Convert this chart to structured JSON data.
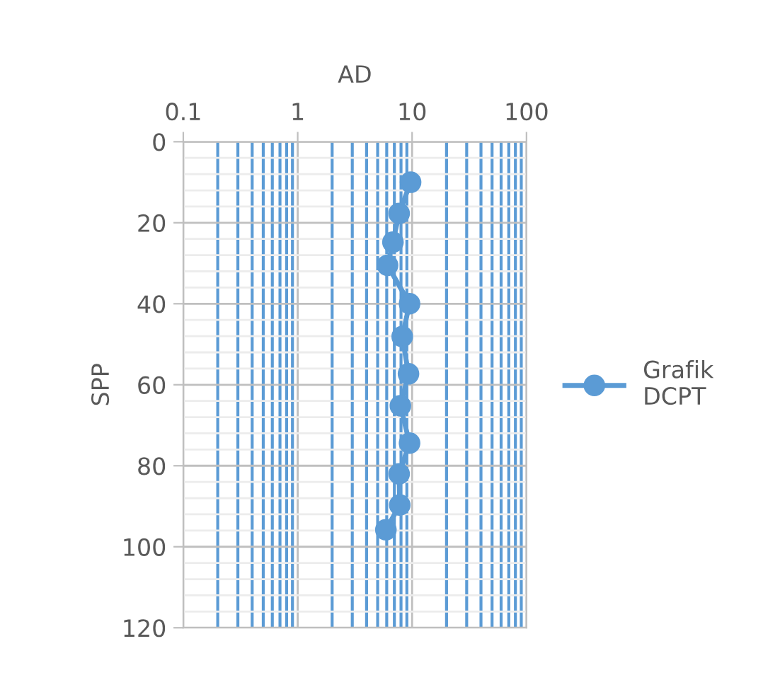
{
  "chart_data": {
    "type": "line",
    "xlabel": "AD",
    "ylabel": "SPP",
    "log": "x",
    "xlim": [
      0.1,
      100
    ],
    "xticks": [
      0.1,
      {
        "value": 0.2,
        "label": null
      },
      {
        "value": 0.3,
        "label": null
      },
      {
        "value": 0.4,
        "label": null
      },
      {
        "value": 0.5,
        "label": null
      },
      {
        "value": 0.6,
        "label": null
      },
      {
        "value": 0.7,
        "label": null
      },
      {
        "value": 0.8,
        "label": null
      },
      {
        "value": 0.9,
        "label": null
      },
      1,
      {
        "value": 2,
        "label": null
      },
      {
        "value": 3,
        "label": null
      },
      {
        "value": 4,
        "label": null
      },
      {
        "value": 5,
        "label": null
      },
      {
        "value": 6,
        "label": null
      },
      {
        "value": 7,
        "label": null
      },
      {
        "value": 8,
        "label": null
      },
      {
        "value": 9,
        "label": null
      },
      10,
      {
        "value": 20,
        "label": null
      },
      {
        "value": 30,
        "label": null
      },
      {
        "value": 40,
        "label": null
      },
      {
        "value": 50,
        "label": null
      },
      {
        "value": 60,
        "label": null
      },
      {
        "value": 70,
        "label": null
      },
      {
        "value": 80,
        "label": null
      },
      {
        "value": 90,
        "label": null
      },
      100
    ],
    "ylim": [
      120,
      0
    ],
    "yticks": [
      0,
      20,
      40,
      60,
      80,
      100,
      120
    ],
    "grid": true,
    "legend": "right",
    "marker": "circle",
    "line_style": "solid",
    "series": [
      {
        "name": "Grafik DCPT",
        "color": "#5b9bd5",
        "x": [
          9.7,
          7.7,
          6.8,
          6.1,
          9.5,
          8.2,
          9.3,
          7.9,
          9.5,
          7.7,
          7.8,
          5.9
        ],
        "values": [
          10,
          17.7,
          24.8,
          30.5,
          40,
          48.1,
          57.3,
          65.2,
          74.4,
          82,
          89.7,
          95.8
        ]
      }
    ]
  }
}
